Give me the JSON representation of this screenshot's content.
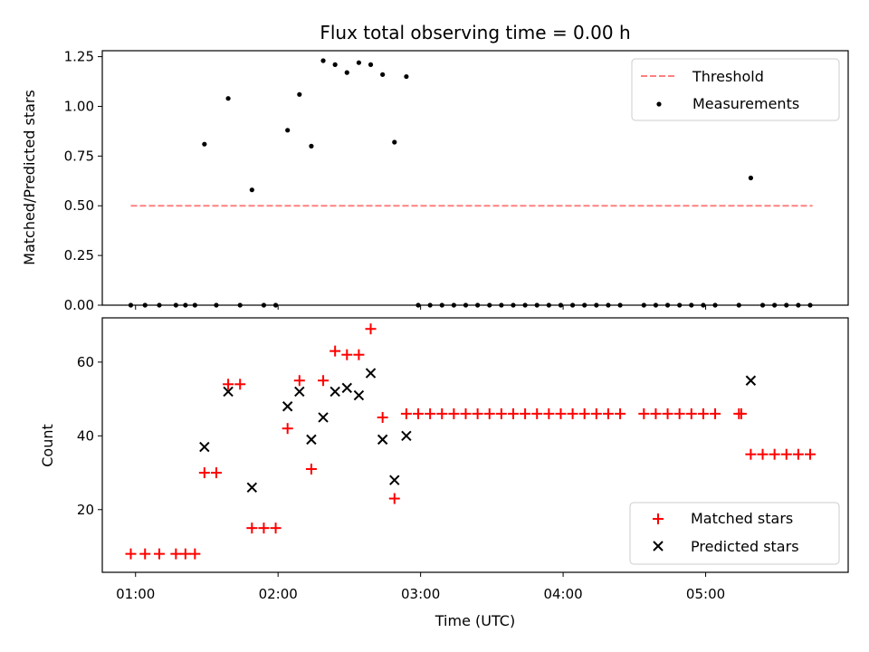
{
  "chart_data": [
    {
      "type": "scatter",
      "title": "Flux total observing time = 0.00 h",
      "ylabel": "Matched/Predicted stars",
      "xlabel": "",
      "xlim": [
        "00:46",
        "06:00"
      ],
      "ylim": [
        0,
        1.28
      ],
      "yticks": [
        "0.00",
        "0.25",
        "0.50",
        "0.75",
        "1.00",
        "1.25"
      ],
      "xticks": [
        "01:00",
        "02:00",
        "03:00",
        "04:00",
        "05:00"
      ],
      "grid": false,
      "legend_position": "top-right",
      "colors": {
        "threshold": "#ff8080",
        "measurements": "#000000"
      },
      "threshold": {
        "name": "Threshold",
        "value": 0.5,
        "x_start": "00:58",
        "x_end": "05:45"
      },
      "series": [
        {
          "name": "Measurements",
          "points": [
            [
              "00:58",
              0
            ],
            [
              "01:04",
              0
            ],
            [
              "01:10",
              0
            ],
            [
              "01:17",
              0
            ],
            [
              "01:21",
              0
            ],
            [
              "01:25",
              0
            ],
            [
              "01:29",
              0.81
            ],
            [
              "01:34",
              0
            ],
            [
              "01:39",
              1.04
            ],
            [
              "01:44",
              0
            ],
            [
              "01:49",
              0.58
            ],
            [
              "01:54",
              0
            ],
            [
              "01:59",
              0
            ],
            [
              "02:04",
              0.88
            ],
            [
              "02:09",
              1.06
            ],
            [
              "02:14",
              0.8
            ],
            [
              "02:19",
              1.23
            ],
            [
              "02:24",
              1.21
            ],
            [
              "02:29",
              1.17
            ],
            [
              "02:34",
              1.22
            ],
            [
              "02:39",
              1.21
            ],
            [
              "02:44",
              1.16
            ],
            [
              "02:49",
              0.82
            ],
            [
              "02:54",
              1.15
            ],
            [
              "02:59",
              0
            ],
            [
              "03:04",
              0
            ],
            [
              "03:09",
              0
            ],
            [
              "03:14",
              0
            ],
            [
              "03:19",
              0
            ],
            [
              "03:24",
              0
            ],
            [
              "03:29",
              0
            ],
            [
              "03:34",
              0
            ],
            [
              "03:39",
              0
            ],
            [
              "03:44",
              0
            ],
            [
              "03:49",
              0
            ],
            [
              "03:54",
              0
            ],
            [
              "03:59",
              0
            ],
            [
              "04:04",
              0
            ],
            [
              "04:09",
              0
            ],
            [
              "04:14",
              0
            ],
            [
              "04:19",
              0
            ],
            [
              "04:24",
              0
            ],
            [
              "04:34",
              0
            ],
            [
              "04:39",
              0
            ],
            [
              "04:44",
              0
            ],
            [
              "04:49",
              0
            ],
            [
              "04:54",
              0
            ],
            [
              "04:59",
              0
            ],
            [
              "05:04",
              0
            ],
            [
              "05:14",
              0
            ],
            [
              "05:19",
              0.64
            ],
            [
              "05:24",
              0
            ],
            [
              "05:29",
              0
            ],
            [
              "05:34",
              0
            ],
            [
              "05:39",
              0
            ],
            [
              "05:44",
              0
            ]
          ]
        }
      ]
    },
    {
      "type": "scatter",
      "title": "",
      "ylabel": "Count",
      "xlabel": "Time (UTC)",
      "xlim": [
        "00:46",
        "06:00"
      ],
      "ylim": [
        3,
        72
      ],
      "yticks": [
        "20",
        "40",
        "60"
      ],
      "xticks": [
        "01:00",
        "02:00",
        "03:00",
        "04:00",
        "05:00"
      ],
      "grid": false,
      "legend_position": "bottom-right",
      "colors": {
        "matched": "#ff0000",
        "predicted": "#000000"
      },
      "series": [
        {
          "name": "Matched stars",
          "marker": "plus",
          "points": [
            [
              "00:58",
              8
            ],
            [
              "01:04",
              8
            ],
            [
              "01:10",
              8
            ],
            [
              "01:17",
              8
            ],
            [
              "01:21",
              8
            ],
            [
              "01:25",
              8
            ],
            [
              "01:29",
              30
            ],
            [
              "01:34",
              30
            ],
            [
              "01:39",
              54
            ],
            [
              "01:44",
              54
            ],
            [
              "01:49",
              15
            ],
            [
              "01:54",
              15
            ],
            [
              "01:59",
              15
            ],
            [
              "02:04",
              42
            ],
            [
              "02:09",
              55
            ],
            [
              "02:14",
              31
            ],
            [
              "02:19",
              55
            ],
            [
              "02:24",
              63
            ],
            [
              "02:29",
              62
            ],
            [
              "02:34",
              62
            ],
            [
              "02:39",
              69
            ],
            [
              "02:44",
              45
            ],
            [
              "02:49",
              23
            ],
            [
              "02:54",
              46
            ],
            [
              "02:59",
              46
            ],
            [
              "03:04",
              46
            ],
            [
              "03:09",
              46
            ],
            [
              "03:14",
              46
            ],
            [
              "03:19",
              46
            ],
            [
              "03:24",
              46
            ],
            [
              "03:29",
              46
            ],
            [
              "03:34",
              46
            ],
            [
              "03:39",
              46
            ],
            [
              "03:44",
              46
            ],
            [
              "03:49",
              46
            ],
            [
              "03:54",
              46
            ],
            [
              "03:59",
              46
            ],
            [
              "04:04",
              46
            ],
            [
              "04:09",
              46
            ],
            [
              "04:14",
              46
            ],
            [
              "04:19",
              46
            ],
            [
              "04:24",
              46
            ],
            [
              "04:34",
              46
            ],
            [
              "04:39",
              46
            ],
            [
              "04:44",
              46
            ],
            [
              "04:49",
              46
            ],
            [
              "04:54",
              46
            ],
            [
              "04:59",
              46
            ],
            [
              "05:04",
              46
            ],
            [
              "05:14",
              46
            ],
            [
              "05:15",
              46
            ],
            [
              "05:19",
              35
            ],
            [
              "05:24",
              35
            ],
            [
              "05:29",
              35
            ],
            [
              "05:34",
              35
            ],
            [
              "05:39",
              35
            ],
            [
              "05:44",
              35
            ]
          ]
        },
        {
          "name": "Predicted stars",
          "marker": "x",
          "points": [
            [
              "01:29",
              37
            ],
            [
              "01:39",
              52
            ],
            [
              "01:49",
              26
            ],
            [
              "02:04",
              48
            ],
            [
              "02:09",
              52
            ],
            [
              "02:14",
              39
            ],
            [
              "02:19",
              45
            ],
            [
              "02:24",
              52
            ],
            [
              "02:29",
              53
            ],
            [
              "02:34",
              51
            ],
            [
              "02:39",
              57
            ],
            [
              "02:44",
              39
            ],
            [
              "02:49",
              28
            ],
            [
              "02:54",
              40
            ],
            [
              "05:19",
              55
            ]
          ]
        }
      ]
    }
  ]
}
